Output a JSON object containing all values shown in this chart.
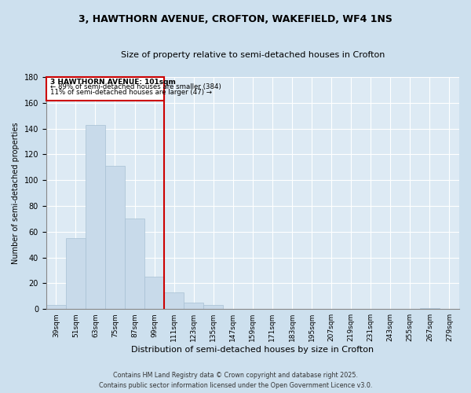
{
  "title": "3, HAWTHORN AVENUE, CROFTON, WAKEFIELD, WF4 1NS",
  "subtitle": "Size of property relative to semi-detached houses in Crofton",
  "xlabel": "Distribution of semi-detached houses by size in Crofton",
  "ylabel": "Number of semi-detached properties",
  "bar_color": "#c8daea",
  "bar_edge_color": "#a8c0d4",
  "background_color": "#ddeaf4",
  "fig_background_color": "#cde0ee",
  "grid_color": "#ffffff",
  "annotation_box_color": "#cc0000",
  "vline_color": "#cc0000",
  "bin_labels": [
    "39sqm",
    "51sqm",
    "63sqm",
    "75sqm",
    "87sqm",
    "99sqm",
    "111sqm",
    "123sqm",
    "135sqm",
    "147sqm",
    "159sqm",
    "171sqm",
    "183sqm",
    "195sqm",
    "207sqm",
    "219sqm",
    "231sqm",
    "243sqm",
    "255sqm",
    "267sqm",
    "279sqm"
  ],
  "bar_values": [
    3,
    55,
    143,
    111,
    70,
    25,
    13,
    5,
    3,
    0,
    0,
    0,
    0,
    0,
    0,
    0,
    0,
    0,
    0,
    1,
    0
  ],
  "vline_position": 5.5,
  "annotation_title": "3 HAWTHORN AVENUE: 101sqm",
  "annotation_line1": "← 89% of semi-detached houses are smaller (384)",
  "annotation_line2": "11% of semi-detached houses are larger (47) →",
  "ylim": [
    0,
    180
  ],
  "yticks": [
    0,
    20,
    40,
    60,
    80,
    100,
    120,
    140,
    160,
    180
  ],
  "footer_line1": "Contains HM Land Registry data © Crown copyright and database right 2025.",
  "footer_line2": "Contains public sector information licensed under the Open Government Licence v3.0."
}
